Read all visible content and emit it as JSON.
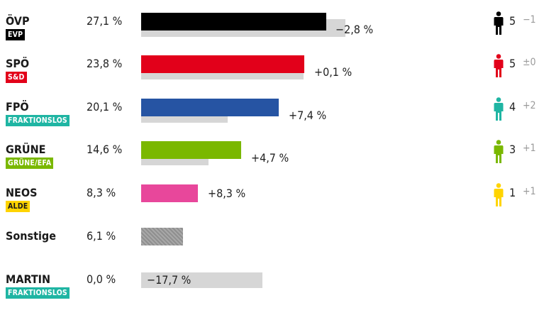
{
  "chart_data": {
    "type": "bar",
    "scale_max": 28.0,
    "parties": [
      {
        "name": "ÖVP",
        "group": "EVP",
        "group_text_color": "#ffffff",
        "group_bg": "#000000",
        "color": "#000000",
        "pct_label": "27,1 %",
        "value": 27.1,
        "prev_value": 29.9,
        "change_label": "−2,8 %",
        "seats": "5",
        "seat_change": "−1"
      },
      {
        "name": "SPÖ",
        "group": "S&D",
        "group_text_color": "#ffffff",
        "group_bg": "#e2001a",
        "color": "#e2001a",
        "pct_label": "23,8 %",
        "value": 23.8,
        "prev_value": 23.7,
        "change_label": "+0,1 %",
        "seats": "5",
        "seat_change": "±0"
      },
      {
        "name": "FPÖ",
        "group": "FRAKTIONSLOS",
        "group_text_color": "#ffffff",
        "group_bg": "#1fb5a3",
        "color": "#2654a3",
        "pct_label": "20,1 %",
        "value": 20.1,
        "prev_value": 12.7,
        "change_label": "+7,4 %",
        "seats": "4",
        "seat_change": "+2",
        "icon_color": "#1fb5a3"
      },
      {
        "name": "GRÜNE",
        "group": "GRÜNE/EFA",
        "group_text_color": "#ffffff",
        "group_bg": "#7ab800",
        "color": "#7ab800",
        "pct_label": "14,6 %",
        "value": 14.6,
        "prev_value": 9.9,
        "change_label": "+4,7 %",
        "seats": "3",
        "seat_change": "+1"
      },
      {
        "name": "NEOS",
        "group": "ALDE",
        "group_text_color": "#1a1a1a",
        "group_bg": "#ffd400",
        "color": "#e8479b",
        "pct_label": "8,3 %",
        "value": 8.3,
        "prev_value": 0,
        "change_label": "+8,3 %",
        "seats": "1",
        "seat_change": "+1",
        "icon_color": "#ffd400"
      },
      {
        "name": "Sonstige",
        "group": "",
        "color": "#999999",
        "pattern": "hatch",
        "pct_label": "6,1 %",
        "value": 6.1,
        "prev_value": 0,
        "change_label": "",
        "seats": "",
        "seat_change": ""
      },
      {
        "name": "MARTIN",
        "group": "FRAKTIONSLOS",
        "group_text_color": "#ffffff",
        "group_bg": "#1fb5a3",
        "color": "#999999",
        "pct_label": "0,0 %",
        "value": 0.0,
        "prev_value": 17.7,
        "change_label": "−17,7 %",
        "seats": "",
        "seat_change": ""
      }
    ],
    "prev_bar_color": "#d6d6d6"
  }
}
